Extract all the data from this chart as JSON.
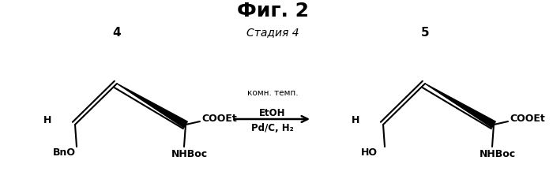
{
  "background_color": "#ffffff",
  "fig_width": 7.0,
  "fig_height": 2.46,
  "dpi": 100,
  "arrow_label_line1": "Pd/C, H₂",
  "arrow_label_line2": "EtOH",
  "arrow_label_line3": "комн. темп.",
  "compound4_label": "4",
  "compound5_label": "5",
  "stage_label": "Стадия 4",
  "fig_label": "Фиг. 2"
}
